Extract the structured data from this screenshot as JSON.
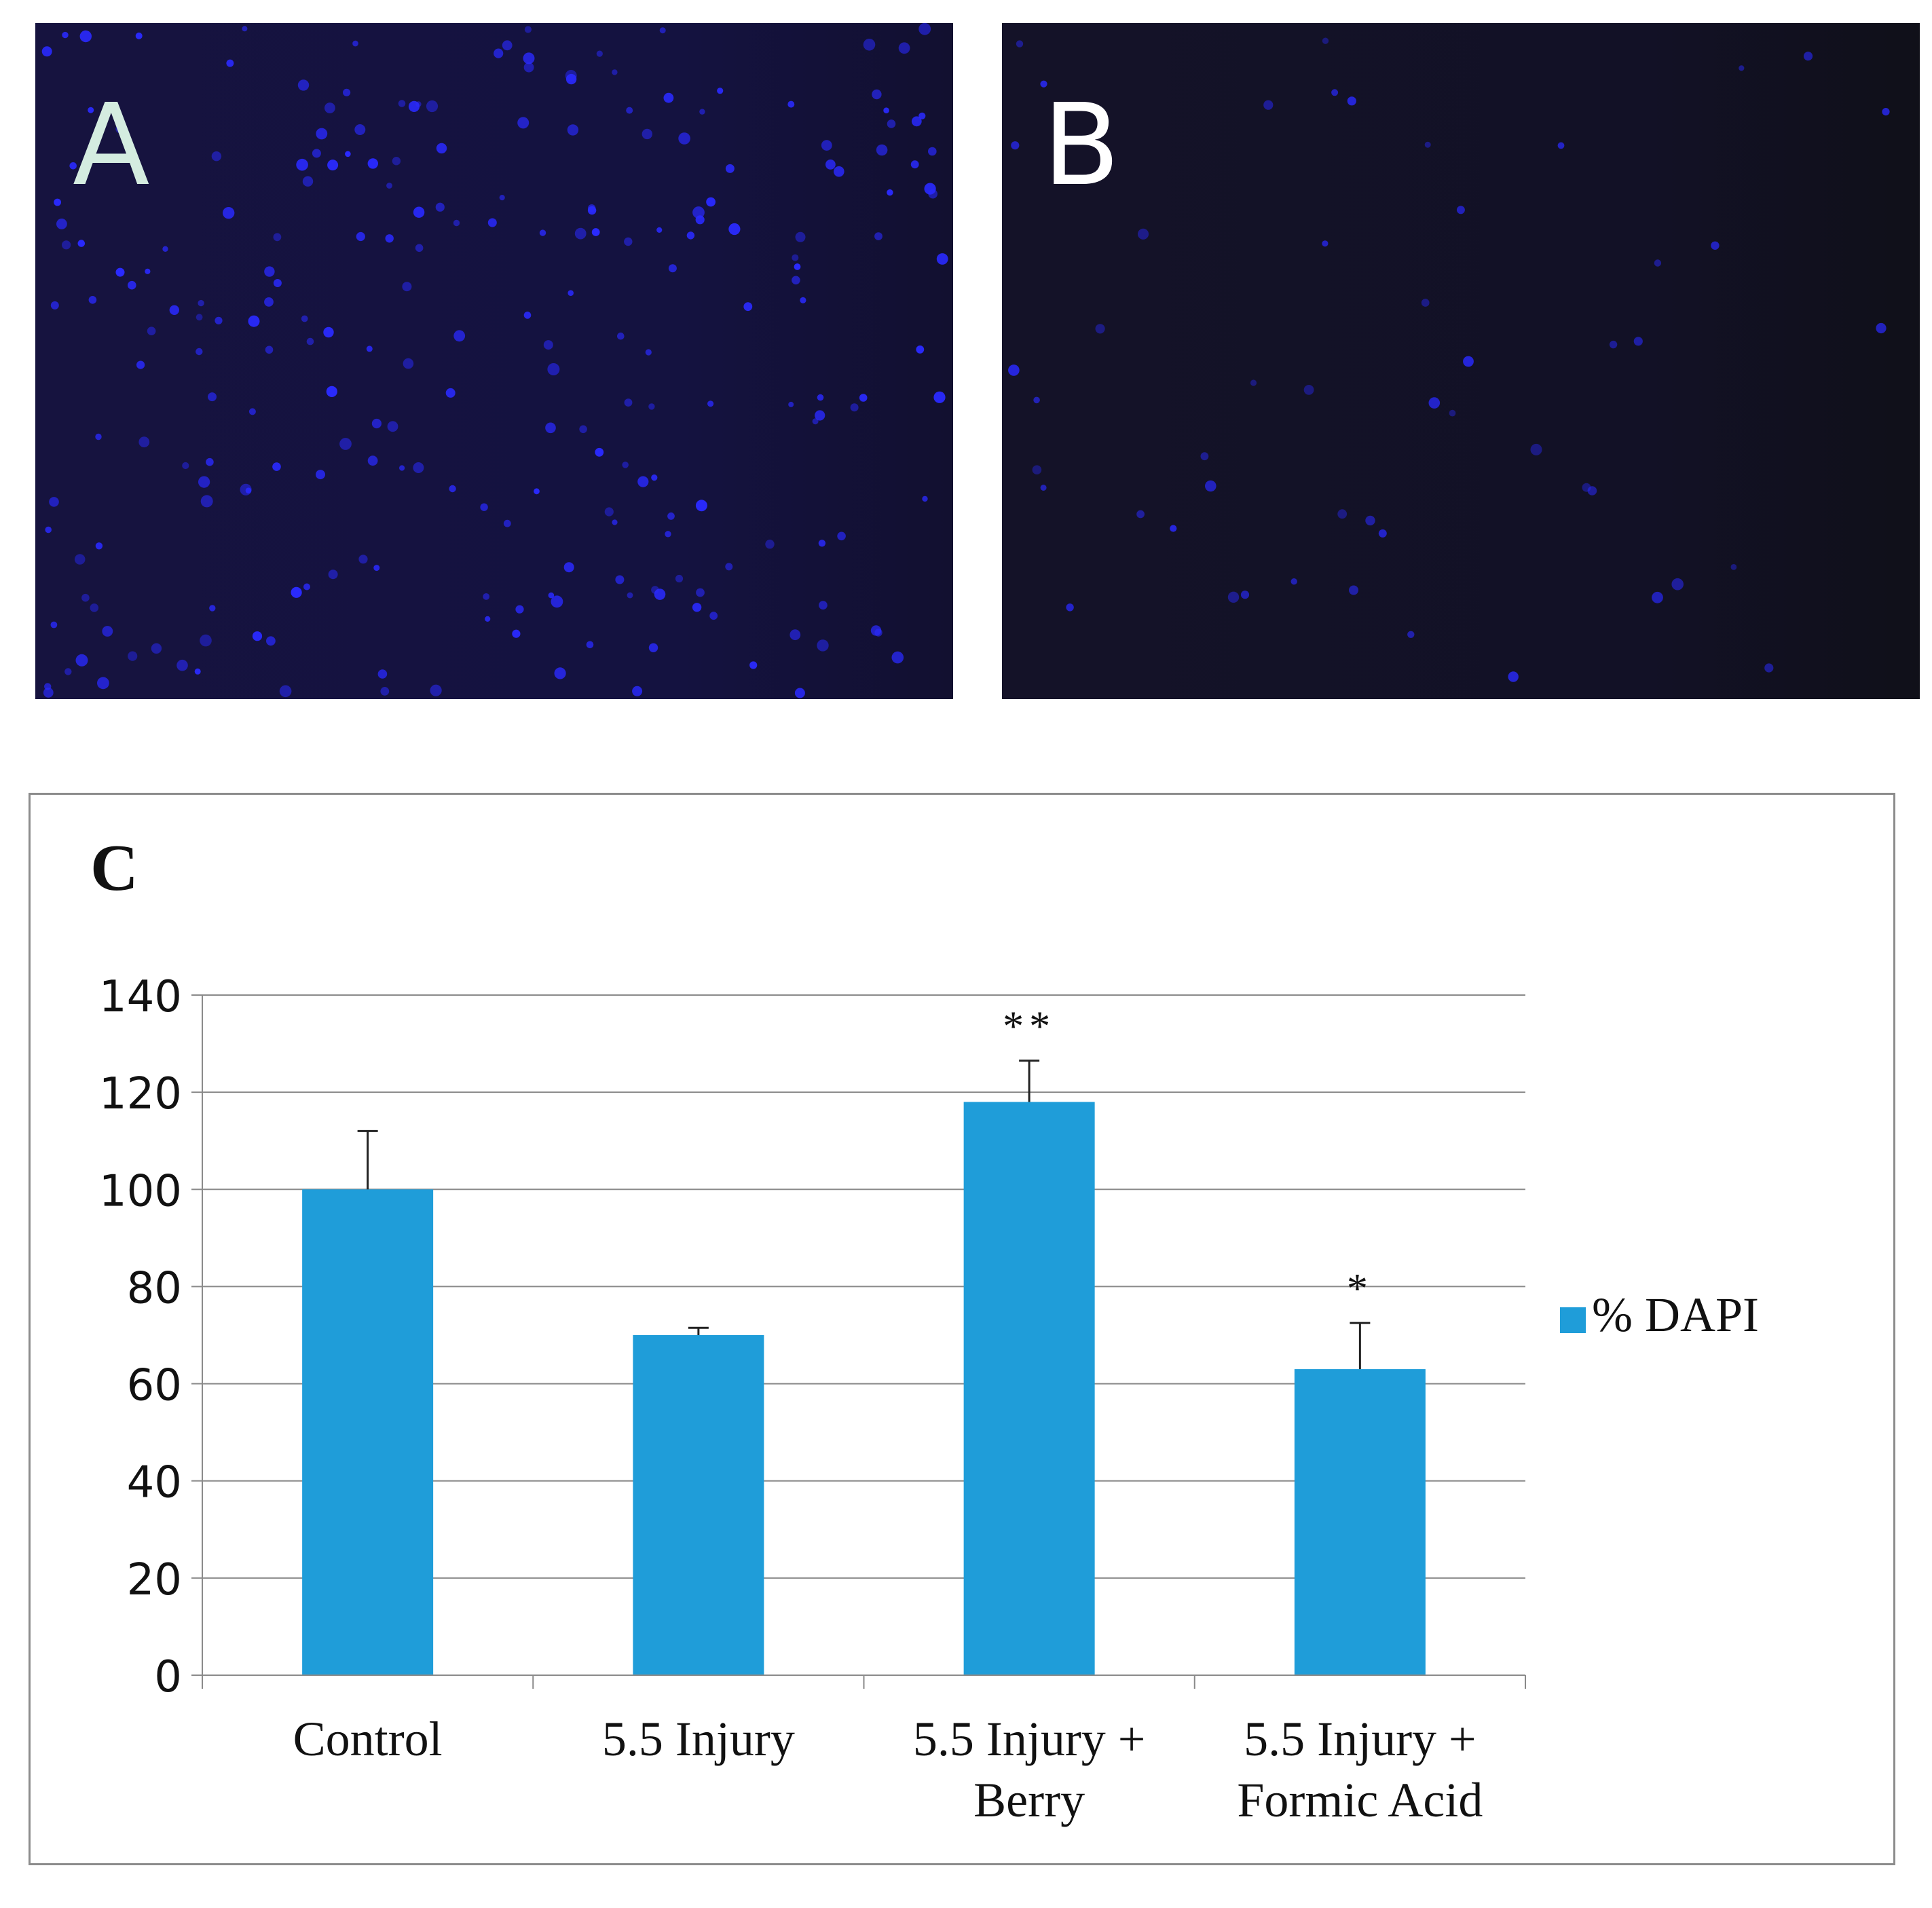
{
  "panels": {
    "a": {
      "label": "A",
      "background": "#15133f",
      "nucleus_color": "#2a2aff"
    },
    "b": {
      "label": "B",
      "background": "#131126",
      "nucleus_color": "#2a2aff"
    }
  },
  "chart_data": {
    "type": "bar",
    "panel_label": "C",
    "categories": [
      [
        "Control"
      ],
      [
        "5.5 Injury"
      ],
      [
        "5.5 Injury +",
        "Berry"
      ],
      [
        "5.5 Injury +",
        "Formic Acid"
      ]
    ],
    "series": [
      {
        "name": "% DAPI",
        "color": "#1f9dd9",
        "values": [
          100,
          70,
          118,
          63
        ],
        "error": [
          12,
          1.5,
          8.5,
          9.5
        ],
        "significance": [
          "",
          "",
          "**",
          "*"
        ]
      }
    ],
    "yticks": [
      0,
      20,
      40,
      60,
      80,
      100,
      120,
      140
    ],
    "ylim": [
      0,
      140
    ],
    "grid": true,
    "legend_position": "right"
  }
}
